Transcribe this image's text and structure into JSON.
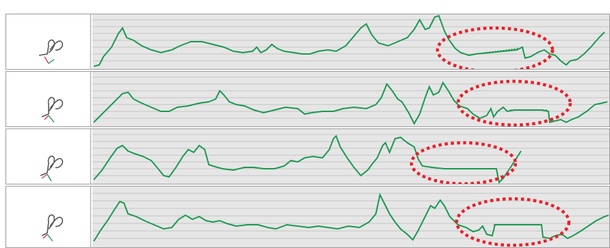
{
  "colors": {
    "signal": "#1a9850",
    "highlight": "#e8202a",
    "grid": "#c4c4c4",
    "plot_background": "#e6e6e6",
    "signature_ink": "#555555",
    "signature_accent": "#e0305a"
  },
  "icons": [
    "signature-thumbnail-icon"
  ],
  "rows": [
    {
      "name": "signature-1",
      "highlighted": true
    },
    {
      "name": "signature-2",
      "highlighted": true
    },
    {
      "name": "signature-3",
      "highlighted": true
    },
    {
      "name": "signature-4",
      "highlighted": true
    }
  ]
}
